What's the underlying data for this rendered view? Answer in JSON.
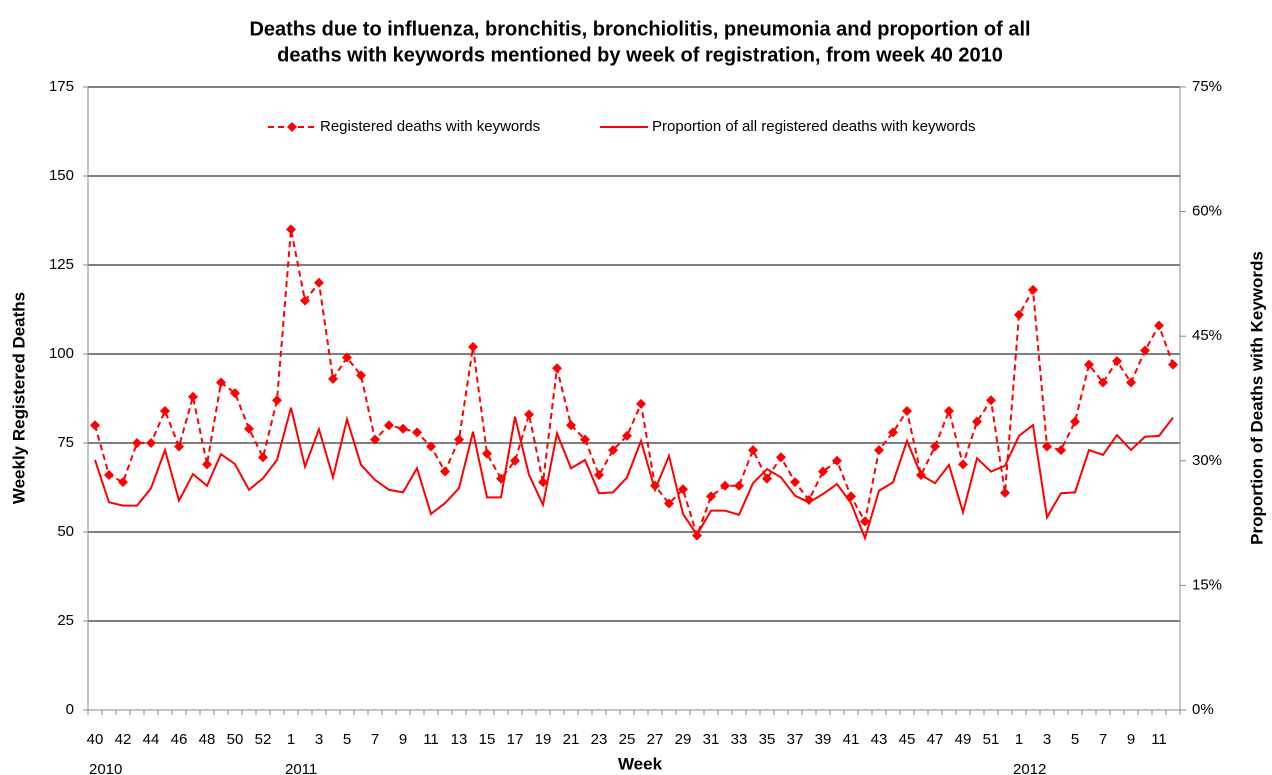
{
  "chart_data": {
    "type": "line",
    "title": [
      "Deaths due to influenza, bronchitis, bronchiolitis, pneumonia and proportion of all",
      "deaths with keywords mentioned by week of registration, from week 40 2010"
    ],
    "x_label": "Week",
    "y_label": "Weekly Registered Deaths",
    "y2_label": "Proportion of Deaths with Keywords",
    "categories": [
      "40",
      null,
      "42",
      null,
      "44",
      null,
      "46",
      null,
      "48",
      null,
      "50",
      null,
      "52",
      null,
      "1",
      null,
      "3",
      null,
      "5",
      null,
      "7",
      null,
      "9",
      null,
      "11",
      null,
      "13",
      null,
      "15",
      null,
      "17",
      null,
      "19",
      null,
      "21",
      null,
      "23",
      null,
      "25",
      null,
      "27",
      null,
      "29",
      null,
      "31",
      null,
      "33",
      null,
      "35",
      null,
      "37",
      null,
      "39",
      null,
      "41",
      null,
      "43",
      null,
      "45",
      null,
      "47",
      null,
      "49",
      null,
      "51",
      null,
      "1",
      null,
      "3",
      null,
      "5",
      null,
      "7",
      null,
      "9",
      null,
      "11",
      null
    ],
    "years": [
      "2010",
      null,
      null,
      null,
      null,
      null,
      null,
      null,
      null,
      null,
      null,
      null,
      null,
      null,
      "2011",
      null,
      null,
      null,
      null,
      null,
      null,
      null,
      null,
      null,
      null,
      null,
      null,
      null,
      null,
      null,
      null,
      null,
      null,
      null,
      null,
      null,
      null,
      null,
      null,
      null,
      null,
      null,
      null,
      null,
      null,
      null,
      null,
      null,
      null,
      null,
      null,
      null,
      null,
      null,
      null,
      null,
      null,
      null,
      null,
      null,
      null,
      null,
      null,
      null,
      null,
      null,
      "2012",
      null,
      null,
      null,
      null,
      null,
      null,
      null,
      null,
      null,
      null,
      null
    ],
    "series": [
      {
        "name": "Registered deaths with keywords",
        "color": "#ff0000",
        "line_style": "dashed",
        "marker": "diamond",
        "values": [
          80,
          66,
          64,
          75,
          75,
          84,
          74,
          88,
          69,
          92,
          89,
          79,
          71,
          87,
          135,
          115,
          120,
          93,
          99,
          94,
          76,
          80,
          79,
          78,
          74,
          67,
          76,
          102,
          72,
          65,
          70,
          83,
          64,
          96,
          80,
          76,
          66,
          73,
          77,
          86,
          63,
          58,
          62,
          49,
          60,
          63,
          63,
          73,
          65,
          71,
          64,
          59,
          67,
          70,
          60,
          53,
          73,
          78,
          84,
          66,
          74,
          84,
          69,
          81,
          87,
          61,
          111,
          118,
          74,
          73,
          81,
          97,
          92,
          98,
          92,
          101,
          108,
          97
        ]
      },
      {
        "name": "Proportion of all registered deaths with keywords",
        "color": "#ff0000",
        "line_style": "solid",
        "axis": "y2",
        "values": [
          30.1,
          25.0,
          24.6,
          24.6,
          26.7,
          31.3,
          25.2,
          28.4,
          27.0,
          30.8,
          29.6,
          26.5,
          27.9,
          30.1,
          36.4,
          29.3,
          33.8,
          28.0,
          35.0,
          29.5,
          27.7,
          26.5,
          26.2,
          29.1,
          23.6,
          24.9,
          26.7,
          33.5,
          25.6,
          25.6,
          35.3,
          28.3,
          24.7,
          33.3,
          29.1,
          30.1,
          26.1,
          26.2,
          28.0,
          32.4,
          26.5,
          30.6,
          23.6,
          21.1,
          24.0,
          24.0,
          23.5,
          27.3,
          29.0,
          28.0,
          25.8,
          25.0,
          26.0,
          27.2,
          24.9,
          20.7,
          26.4,
          27.4,
          32.4,
          28.3,
          27.3,
          29.5,
          23.8,
          30.3,
          28.7,
          29.4,
          33.0,
          34.3,
          23.2,
          26.1,
          26.2,
          31.3,
          30.7,
          33.1,
          31.3,
          32.9,
          33.0,
          35.2
        ]
      }
    ],
    "ylim": [
      0,
      175
    ],
    "yticks": [
      0,
      25,
      50,
      75,
      100,
      125,
      150,
      175
    ],
    "y2lim": [
      0,
      75
    ],
    "y2ticks": [
      {
        "value": 0,
        "label": "0%"
      },
      {
        "value": 15,
        "label": "15%"
      },
      {
        "value": 30,
        "label": "30%"
      },
      {
        "value": 45,
        "label": "45%"
      },
      {
        "value": 60,
        "label": "60%"
      },
      {
        "value": 75,
        "label": "75%"
      }
    ],
    "grid": true,
    "legend": "top"
  }
}
